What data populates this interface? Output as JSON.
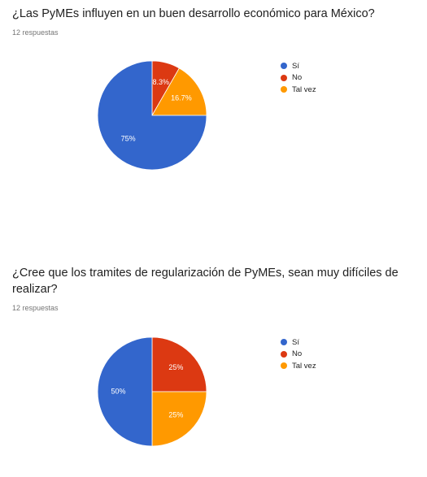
{
  "chart_data": [
    {
      "type": "pie",
      "title": "¿Las PyMEs influyen en un buen desarrollo económico para México?",
      "subtitle": "12 respuestas",
      "categories": [
        "Sí",
        "No",
        "Tal vez"
      ],
      "values": [
        75,
        8.3,
        16.7
      ],
      "labels": [
        "75%",
        "8.3%",
        "16.7%"
      ],
      "colors": [
        "#3366cc",
        "#dc3912",
        "#ff9900"
      ],
      "legend": "right"
    },
    {
      "type": "pie",
      "title": "¿Cree que los tramites de regularización de PyMEs, sean muy difíciles de realizar?",
      "subtitle": "12 respuestas",
      "categories": [
        "Sí",
        "No",
        "Tal vez"
      ],
      "values": [
        50,
        25,
        25
      ],
      "labels": [
        "50%",
        "25%",
        "25%"
      ],
      "colors": [
        "#3366cc",
        "#dc3912",
        "#ff9900"
      ],
      "legend": "right"
    }
  ]
}
